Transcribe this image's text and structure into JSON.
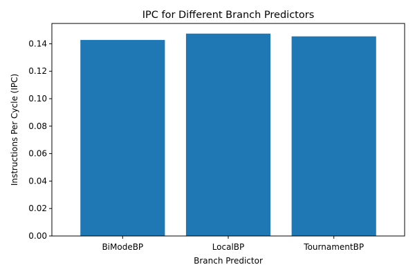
{
  "chart_data": {
    "type": "bar",
    "title": "IPC for Different Branch Predictors",
    "xlabel": "Branch Predictor",
    "ylabel": "Instructions Per Cycle (IPC)",
    "categories": [
      "BiModeBP",
      "LocalBP",
      "TournamentBP"
    ],
    "values": [
      0.1428,
      0.1474,
      0.1454
    ],
    "ylim": [
      0,
      0.1548
    ],
    "yticks": [
      0.0,
      0.02,
      0.04,
      0.06,
      0.08,
      0.1,
      0.12,
      0.14
    ],
    "ytick_labels": [
      "0.00",
      "0.02",
      "0.04",
      "0.06",
      "0.08",
      "0.10",
      "0.12",
      "0.14"
    ],
    "bar_color": "#1f77b4",
    "grid": false,
    "legend": "none"
  }
}
